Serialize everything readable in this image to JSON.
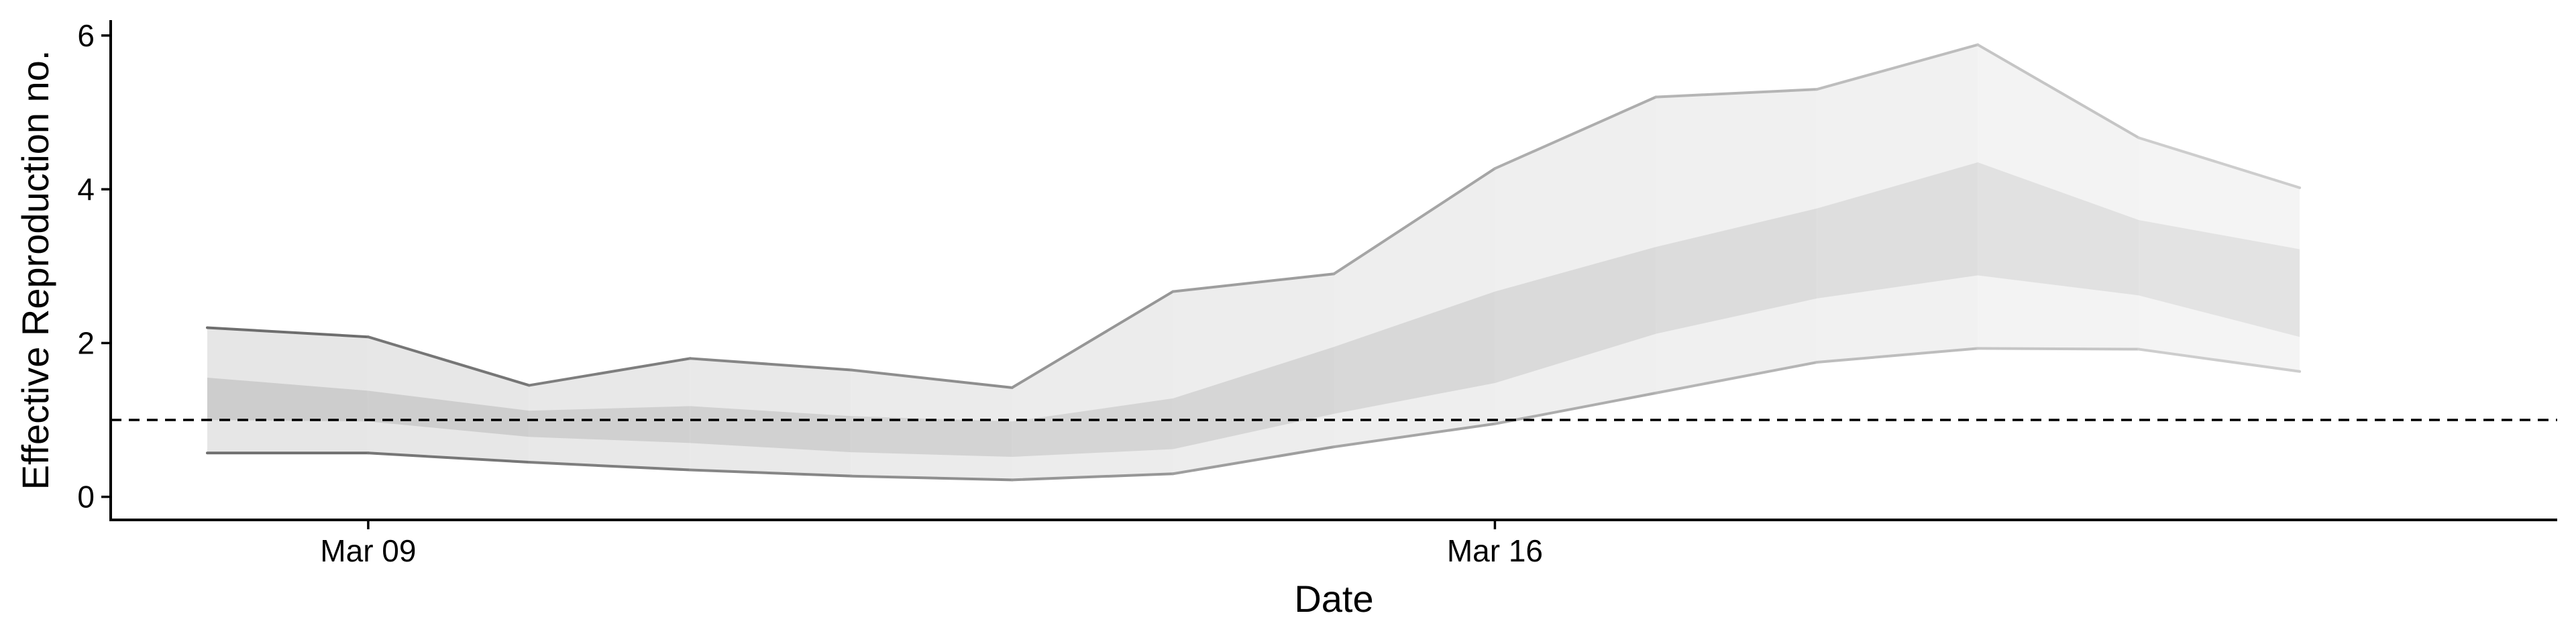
{
  "chart_data": {
    "type": "area",
    "xlabel": "Date",
    "ylabel": "Effective Reproduction no.",
    "x_tick_labels": [
      {
        "date": "2020-03-09",
        "label": "Mar 09"
      },
      {
        "date": "2020-03-16",
        "label": "Mar 16"
      }
    ],
    "y_ticks": [
      0,
      2,
      4,
      6
    ],
    "xlim": [
      "2020-03-07T09:36",
      "2020-03-22T14:24"
    ],
    "ylim": [
      -0.3,
      6.2
    ],
    "reference_line": {
      "y": 1,
      "style": "dashed"
    },
    "grid": false,
    "dates": [
      "2020-03-08",
      "2020-03-09",
      "2020-03-10",
      "2020-03-11",
      "2020-03-12",
      "2020-03-13",
      "2020-03-14",
      "2020-03-15",
      "2020-03-16",
      "2020-03-17",
      "2020-03-18",
      "2020-03-19",
      "2020-03-20",
      "2020-03-21"
    ],
    "outer_band": {
      "lower": [
        0.57,
        0.57,
        0.45,
        0.35,
        0.27,
        0.22,
        0.3,
        0.65,
        0.95,
        1.35,
        1.75,
        1.93,
        1.92,
        1.63
      ],
      "upper": [
        2.2,
        2.08,
        1.45,
        1.8,
        1.65,
        1.42,
        2.67,
        2.9,
        4.27,
        5.2,
        5.3,
        5.88,
        4.67,
        4.02
      ]
    },
    "inner_band": {
      "lower": [
        1.0,
        0.98,
        0.78,
        0.7,
        0.58,
        0.52,
        0.62,
        1.08,
        1.48,
        2.12,
        2.58,
        2.88,
        2.62,
        2.08
      ],
      "upper": [
        1.55,
        1.38,
        1.12,
        1.18,
        1.05,
        0.98,
        1.28,
        1.95,
        2.67,
        3.25,
        3.75,
        4.35,
        3.6,
        3.22
      ]
    },
    "colors": {
      "band_outer": "#e6e6e6",
      "band_inner": "#c8c8c8",
      "line_early": "#6e6e6e",
      "line_late": "#cdcdcd",
      "reference": "#000000",
      "axis": "#000000"
    }
  }
}
